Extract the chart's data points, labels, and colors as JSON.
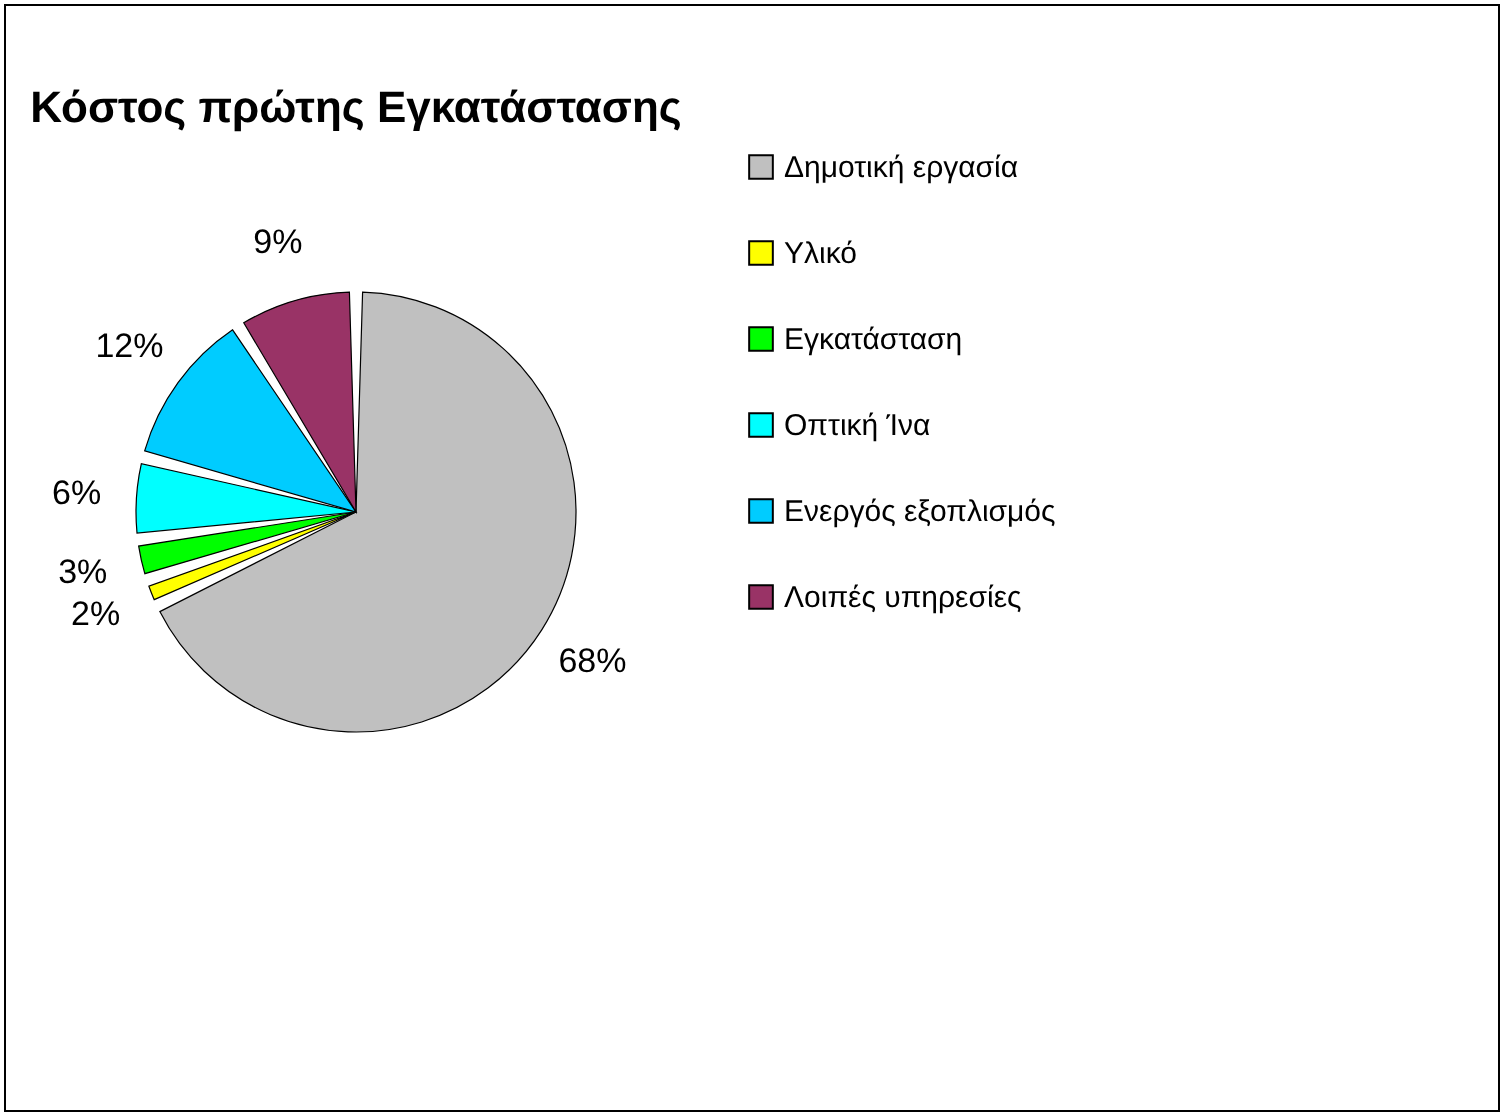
{
  "chart_data": {
    "type": "pie",
    "title": "Κόστος πρώτης Εγκατάστασης",
    "categories": [
      "Δημοτική εργασία",
      "Υλικό",
      "Εγκατάσταση",
      "Οπτική Ίνα",
      "Ενεργός εξοπλισμός",
      "Λοιπές υπηρεσίες"
    ],
    "values": [
      68,
      2,
      3,
      6,
      12,
      9
    ],
    "colors": [
      "#c0c0c0",
      "#ffff00",
      "#00ff00",
      "#00ffff",
      "#00ccff",
      "#993366"
    ],
    "value_labels": [
      "68%",
      "2%",
      "3%",
      "6%",
      "12%",
      "9%"
    ],
    "legend": "right"
  }
}
